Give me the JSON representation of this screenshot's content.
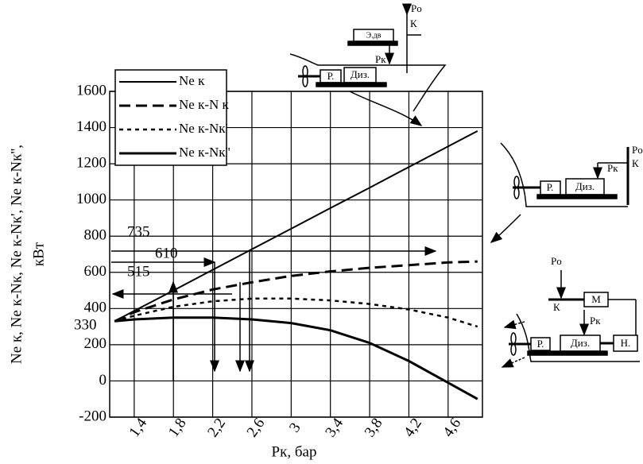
{
  "chart_data": {
    "type": "line",
    "x_label": "Рк, бар",
    "y_label": [
      "Ne к, Ne к-Nк, Ne к-Nк', Ne к-Nк'',",
      "кВт"
    ],
    "x": [
      1.2,
      1.4,
      1.8,
      2.2,
      2.6,
      3,
      3.4,
      3.8,
      4.2,
      4.6,
      4.9
    ],
    "series": [
      {
        "name": "Ne к",
        "color": "#000000",
        "line_style": "solid",
        "line_width": 2,
        "values": [
          330,
          387,
          500,
          614,
          728,
          841,
          955,
          1068,
          1182,
          1296,
          1381
        ]
      },
      {
        "name": "Ne к-N к",
        "color": "#000000",
        "line_style": "dashed",
        "line_width": 3,
        "values": [
          330,
          380,
          450,
          505,
          545,
          580,
          605,
          625,
          640,
          655,
          660
        ]
      },
      {
        "name": "Ne к-Nк'",
        "color": "#000000",
        "line_style": "dotted",
        "line_width": 2.5,
        "values": [
          330,
          360,
          410,
          440,
          455,
          455,
          445,
          425,
          395,
          350,
          300
        ]
      },
      {
        "name": "Ne к-Nк''",
        "color": "#000000",
        "line_style": "solid",
        "line_width": 3,
        "values": [
          330,
          340,
          350,
          350,
          340,
          320,
          280,
          210,
          110,
          -10,
          -100
        ]
      }
    ],
    "xlim": [
      1.15,
      4.95
    ],
    "ylim": [
      -200,
      1600
    ],
    "xticks": [
      {
        "value": 1.4,
        "label": "1,4"
      },
      {
        "value": 1.8,
        "label": "1,8"
      },
      {
        "value": 2.2,
        "label": "2,2"
      },
      {
        "value": 2.6,
        "label": "2,6"
      },
      3,
      {
        "value": 3.4,
        "label": "3,4"
      },
      {
        "value": 3.8,
        "label": "3,8"
      },
      {
        "value": 4.2,
        "label": "4,2"
      },
      {
        "value": 4.6,
        "label": "4,6"
      }
    ],
    "yticks": [
      -200,
      0,
      200,
      400,
      600,
      800,
      1000,
      1200,
      1400,
      1600
    ],
    "grid": true,
    "legend": "upper-left",
    "annotations": [
      "735",
      "610",
      "515",
      "330"
    ]
  },
  "diagrams": [
    {
      "labels": [
        "Pо",
        "К",
        "Э.дв",
        "Pк",
        "Р.",
        "Диз."
      ]
    },
    {
      "labels": [
        "Pк",
        "Р.",
        "Диз.",
        "Pо",
        "К"
      ]
    },
    {
      "labels": [
        "Pо",
        "К",
        "М",
        "Pк",
        "Р.",
        "Диз.",
        "Н."
      ]
    }
  ]
}
